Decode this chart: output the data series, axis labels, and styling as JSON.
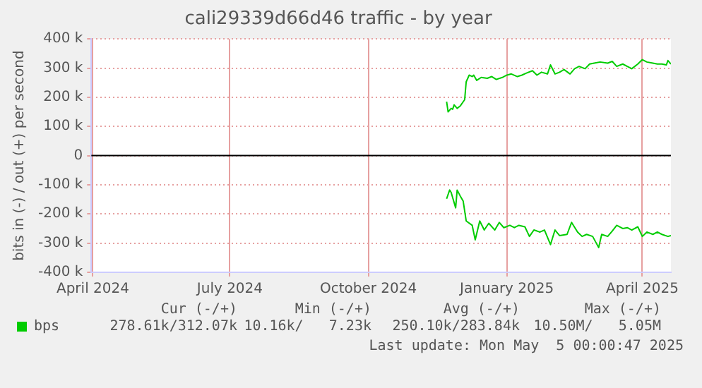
{
  "chart_data": {
    "type": "line",
    "title": "cali29339d66d46 traffic - by year",
    "ylabel": "bits in (-) / out (+) per second",
    "xlim": [
      "2024-03-31",
      "2025-04-20"
    ],
    "xticks": [
      {
        "value": "2024-04-01",
        "label": "April 2024"
      },
      {
        "value": "2024-07-01",
        "label": "July 2024"
      },
      {
        "value": "2024-10-01",
        "label": "October 2024"
      },
      {
        "value": "2025-01-01",
        "label": "January 2025"
      },
      {
        "value": "2025-04-01",
        "label": "April 2025"
      }
    ],
    "ylim": [
      -400000,
      400000
    ],
    "yticks": [
      {
        "value": -400000,
        "label": "-400 k"
      },
      {
        "value": -300000,
        "label": "-300 k"
      },
      {
        "value": -200000,
        "label": "-200 k"
      },
      {
        "value": -100000,
        "label": "-100 k"
      },
      0,
      {
        "value": 100000,
        "label": "100 k"
      },
      {
        "value": 200000,
        "label": "200 k"
      },
      {
        "value": 300000,
        "label": "300 k"
      },
      {
        "value": 400000,
        "label": "400 k"
      }
    ],
    "grid": true,
    "legend": "bottom",
    "marker": "none",
    "ref_lines": [
      {
        "axis": "y",
        "value": 0,
        "color": "#000000"
      }
    ],
    "series": [
      {
        "name": "bps",
        "color": "#00cc00",
        "x": [
          "2024-11-22",
          "2024-11-23",
          "2024-11-25",
          "2024-11-26",
          "2024-11-27",
          "2024-11-29",
          "2024-12-01",
          "2024-12-04",
          "2024-12-05",
          "2024-12-07",
          "2024-12-09",
          "2024-12-10",
          "2024-12-12",
          "2024-12-15",
          "2024-12-19",
          "2024-12-22",
          "2024-12-25",
          "2024-12-29",
          "2025-01-01",
          "2025-01-04",
          "2025-01-08",
          "2025-01-11",
          "2025-01-14",
          "2025-01-18",
          "2025-01-21",
          "2025-01-24",
          "2025-01-28",
          "2025-01-30",
          "2025-02-02",
          "2025-02-05",
          "2025-02-08",
          "2025-02-12",
          "2025-02-15",
          "2025-02-18",
          "2025-02-22",
          "2025-02-25",
          "2025-02-28",
          "2025-03-04",
          "2025-03-09",
          "2025-03-12",
          "2025-03-15",
          "2025-03-19",
          "2025-03-22",
          "2025-03-25",
          "2025-03-29",
          "2025-04-01",
          "2025-04-04",
          "2025-04-08",
          "2025-04-11",
          "2025-04-14",
          "2025-04-17",
          "2025-04-18",
          "2025-04-20"
        ],
        "values": [
          185000,
          150000,
          162000,
          159000,
          174000,
          162000,
          170000,
          192000,
          253000,
          276000,
          271000,
          276000,
          258000,
          268000,
          265000,
          271000,
          261000,
          268000,
          276000,
          280000,
          271000,
          276000,
          283000,
          291000,
          276000,
          286000,
          280000,
          311000,
          280000,
          286000,
          295000,
          280000,
          298000,
          306000,
          298000,
          314000,
          317000,
          321000,
          317000,
          323000,
          306000,
          314000,
          306000,
          298000,
          314000,
          329000,
          321000,
          317000,
          314000,
          314000,
          311000,
          326000,
          314000
        ]
      },
      {
        "color": "#00cc00",
        "x": [
          "2024-11-22",
          "2024-11-24",
          "2024-11-25",
          "2024-11-28",
          "2024-11-29",
          "2024-12-01",
          "2024-12-03",
          "2024-12-05",
          "2024-12-09",
          "2024-12-11",
          "2024-12-14",
          "2024-12-17",
          "2024-12-20",
          "2024-12-24",
          "2024-12-27",
          "2024-12-30",
          "2025-01-03",
          "2025-01-06",
          "2025-01-09",
          "2025-01-13",
          "2025-01-16",
          "2025-01-19",
          "2025-01-23",
          "2025-01-26",
          "2025-01-30",
          "2025-02-02",
          "2025-02-05",
          "2025-02-10",
          "2025-02-13",
          "2025-02-17",
          "2025-02-20",
          "2025-02-23",
          "2025-02-27",
          "2025-03-03",
          "2025-03-05",
          "2025-03-09",
          "2025-03-12",
          "2025-03-15",
          "2025-03-19",
          "2025-03-22",
          "2025-03-25",
          "2025-03-29",
          "2025-04-01",
          "2025-04-04",
          "2025-04-08",
          "2025-04-11",
          "2025-04-14",
          "2025-04-18",
          "2025-04-20"
        ],
        "values": [
          -148000,
          -118000,
          -126000,
          -179000,
          -118000,
          -138000,
          -156000,
          -224000,
          -239000,
          -289000,
          -224000,
          -255000,
          -232000,
          -255000,
          -229000,
          -247000,
          -239000,
          -247000,
          -239000,
          -244000,
          -277000,
          -255000,
          -262000,
          -255000,
          -305000,
          -255000,
          -274000,
          -270000,
          -229000,
          -262000,
          -277000,
          -270000,
          -277000,
          -315000,
          -270000,
          -277000,
          -259000,
          -239000,
          -250000,
          -247000,
          -255000,
          -244000,
          -277000,
          -262000,
          -270000,
          -262000,
          -270000,
          -277000,
          -274000
        ]
      }
    ],
    "annotations": [
      "Cur (-/+)",
      "Min (-/+)",
      "Avg (-/+)",
      "Max (-/+)",
      "278.61k/312.07k",
      "10.16k/   7.23k",
      "250.10k/283.84k",
      "10.50M/   5.05M",
      "Last update: Mon May  5 00:00:47 2025"
    ]
  }
}
